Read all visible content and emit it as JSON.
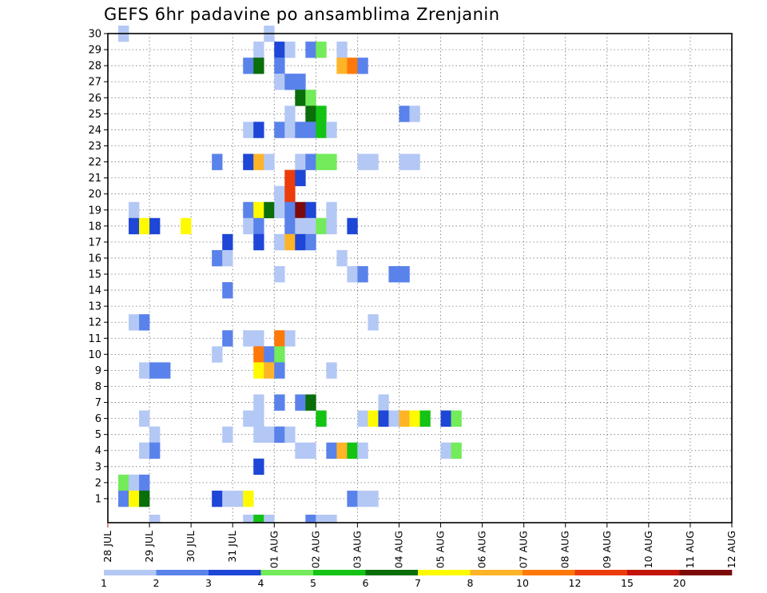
{
  "chart_data": {
    "type": "heatmap",
    "title": "GEFS 6hr padavine po ansamblima Zrenjanin",
    "xlabel": "",
    "ylabel": "",
    "x_tick_labels": [
      "28 JUL",
      "29 JUL",
      "30 JUL",
      "31 JUL",
      "01 AUG",
      "02 AUG",
      "03 AUG",
      "04 AUG",
      "05 AUG",
      "06 AUG",
      "07 AUG",
      "08 AUG",
      "09 AUG",
      "10 AUG",
      "11 AUG",
      "12 AUG"
    ],
    "y_tick_labels": [
      "1",
      "2",
      "3",
      "4",
      "5",
      "6",
      "7",
      "8",
      "9",
      "10",
      "11",
      "12",
      "13",
      "14",
      "15",
      "16",
      "17",
      "18",
      "19",
      "20",
      "21",
      "22",
      "23",
      "24",
      "25",
      "26",
      "27",
      "28",
      "29",
      "30"
    ],
    "x_range_days": [
      0,
      15
    ],
    "y_range": [
      0,
      30
    ],
    "grid": true,
    "legend": {
      "placement": "bottom",
      "labels": [
        "1",
        "2",
        "3",
        "4",
        "5",
        "6",
        "7",
        "8",
        "10",
        "12",
        "15",
        "20"
      ],
      "colors": [
        "#b4c8f5",
        "#5a82eb",
        "#1e46d7",
        "#73eb5a",
        "#14c314",
        "#0a6e0a",
        "#fffa00",
        "#ffb428",
        "#ff780a",
        "#eb3c0a",
        "#c3140a",
        "#7d0a0a"
      ]
    },
    "colors": {
      "lb": "#b4c8f5",
      "mb": "#5a82eb",
      "db": "#1e46d7",
      "lg": "#73eb5a",
      "mg": "#14c314",
      "dg": "#0a6e0a",
      "yw": "#fffa00",
      "lo": "#ffb428",
      "or": "#ff780a",
      "rd": "#eb3c0a",
      "dr": "#c3140a",
      "mr": "#7d0a0a"
    },
    "cells": [
      [
        4,
        0,
        "lb"
      ],
      [
        1,
        30,
        "lb"
      ],
      [
        15,
        30,
        "lb"
      ],
      [
        14,
        29,
        "lb"
      ],
      [
        16,
        29,
        "db"
      ],
      [
        17,
        29,
        "lb"
      ],
      [
        19,
        29,
        "mb"
      ],
      [
        20,
        29,
        "lg"
      ],
      [
        22,
        29,
        "lb"
      ],
      [
        13,
        28,
        "mb"
      ],
      [
        14,
        28,
        "dg"
      ],
      [
        16,
        28,
        "mb"
      ],
      [
        22,
        28,
        "lo"
      ],
      [
        23,
        28,
        "or"
      ],
      [
        24,
        28,
        "mb"
      ],
      [
        16,
        27,
        "lb"
      ],
      [
        17,
        27,
        "mb"
      ],
      [
        18,
        27,
        "mb"
      ],
      [
        18,
        26,
        "dg"
      ],
      [
        19,
        26,
        "lg"
      ],
      [
        17,
        25,
        "lb"
      ],
      [
        19,
        25,
        "dg"
      ],
      [
        20,
        25,
        "mg"
      ],
      [
        28,
        25,
        "mb"
      ],
      [
        29,
        25,
        "lb"
      ],
      [
        13,
        24,
        "lb"
      ],
      [
        14,
        24,
        "db"
      ],
      [
        16,
        24,
        "mb"
      ],
      [
        17,
        24,
        "lb"
      ],
      [
        18,
        24,
        "mb"
      ],
      [
        19,
        24,
        "mb"
      ],
      [
        20,
        24,
        "mg"
      ],
      [
        21,
        24,
        "lb"
      ],
      [
        10,
        22,
        "mb"
      ],
      [
        13,
        22,
        "db"
      ],
      [
        14,
        22,
        "lo"
      ],
      [
        15,
        22,
        "lb"
      ],
      [
        18,
        22,
        "lb"
      ],
      [
        19,
        22,
        "mb"
      ],
      [
        20,
        22,
        "lg"
      ],
      [
        21,
        22,
        "lg"
      ],
      [
        24,
        22,
        "lb"
      ],
      [
        25,
        22,
        "lb"
      ],
      [
        28,
        22,
        "lb"
      ],
      [
        29,
        22,
        "lb"
      ],
      [
        17,
        21,
        "rd"
      ],
      [
        18,
        21,
        "db"
      ],
      [
        16,
        20,
        "lb"
      ],
      [
        17,
        20,
        "rd"
      ],
      [
        2,
        19,
        "lb"
      ],
      [
        13,
        19,
        "mb"
      ],
      [
        14,
        19,
        "yw"
      ],
      [
        15,
        19,
        "dg"
      ],
      [
        16,
        19,
        "lb"
      ],
      [
        17,
        19,
        "mb"
      ],
      [
        18,
        19,
        "mr"
      ],
      [
        19,
        19,
        "db"
      ],
      [
        21,
        19,
        "lb"
      ],
      [
        2,
        18,
        "db"
      ],
      [
        3,
        18,
        "yw"
      ],
      [
        4,
        18,
        "db"
      ],
      [
        7,
        18,
        "yw"
      ],
      [
        13,
        18,
        "lb"
      ],
      [
        14,
        18,
        "mb"
      ],
      [
        17,
        18,
        "mb"
      ],
      [
        18,
        18,
        "lb"
      ],
      [
        19,
        18,
        "lb"
      ],
      [
        20,
        18,
        "lg"
      ],
      [
        21,
        18,
        "lb"
      ],
      [
        23,
        18,
        "db"
      ],
      [
        11,
        17,
        "db"
      ],
      [
        14,
        17,
        "db"
      ],
      [
        16,
        17,
        "lb"
      ],
      [
        17,
        17,
        "lo"
      ],
      [
        18,
        17,
        "db"
      ],
      [
        19,
        17,
        "mb"
      ],
      [
        10,
        16,
        "mb"
      ],
      [
        11,
        16,
        "lb"
      ],
      [
        22,
        16,
        "lb"
      ],
      [
        16,
        15,
        "lb"
      ],
      [
        23,
        15,
        "lb"
      ],
      [
        24,
        15,
        "mb"
      ],
      [
        27,
        15,
        "mb"
      ],
      [
        28,
        15,
        "mb"
      ],
      [
        11,
        14,
        "mb"
      ],
      [
        2,
        12,
        "lb"
      ],
      [
        3,
        12,
        "mb"
      ],
      [
        25,
        12,
        "lb"
      ],
      [
        11,
        11,
        "mb"
      ],
      [
        13,
        11,
        "lb"
      ],
      [
        14,
        11,
        "lb"
      ],
      [
        16,
        11,
        "or"
      ],
      [
        17,
        11,
        "lb"
      ],
      [
        10,
        10,
        "lb"
      ],
      [
        14,
        10,
        "or"
      ],
      [
        15,
        10,
        "mb"
      ],
      [
        16,
        10,
        "lg"
      ],
      [
        3,
        9,
        "lb"
      ],
      [
        4,
        9,
        "mb"
      ],
      [
        5,
        9,
        "mb"
      ],
      [
        14,
        9,
        "yw"
      ],
      [
        15,
        9,
        "lo"
      ],
      [
        16,
        9,
        "mb"
      ],
      [
        21,
        9,
        "lb"
      ],
      [
        14,
        7,
        "lb"
      ],
      [
        16,
        7,
        "mb"
      ],
      [
        18,
        7,
        "mb"
      ],
      [
        19,
        7,
        "dg"
      ],
      [
        26,
        7,
        "lb"
      ],
      [
        3,
        6,
        "lb"
      ],
      [
        13,
        6,
        "lb"
      ],
      [
        14,
        6,
        "lb"
      ],
      [
        20,
        6,
        "mg"
      ],
      [
        24,
        6,
        "lb"
      ],
      [
        25,
        6,
        "yw"
      ],
      [
        26,
        6,
        "db"
      ],
      [
        27,
        6,
        "lb"
      ],
      [
        28,
        6,
        "lo"
      ],
      [
        29,
        6,
        "yw"
      ],
      [
        30,
        6,
        "mg"
      ],
      [
        32,
        6,
        "db"
      ],
      [
        33,
        6,
        "lg"
      ],
      [
        4,
        5,
        "lb"
      ],
      [
        11,
        5,
        "lb"
      ],
      [
        14,
        5,
        "lb"
      ],
      [
        15,
        5,
        "lb"
      ],
      [
        16,
        5,
        "mb"
      ],
      [
        17,
        5,
        "lb"
      ],
      [
        3,
        4,
        "lb"
      ],
      [
        4,
        4,
        "mb"
      ],
      [
        18,
        4,
        "lb"
      ],
      [
        19,
        4,
        "lb"
      ],
      [
        21,
        4,
        "mb"
      ],
      [
        22,
        4,
        "lo"
      ],
      [
        23,
        4,
        "mg"
      ],
      [
        24,
        4,
        "lb"
      ],
      [
        32,
        4,
        "lb"
      ],
      [
        33,
        4,
        "lg"
      ],
      [
        14,
        3,
        "db"
      ],
      [
        1,
        2,
        "lg"
      ],
      [
        2,
        2,
        "lb"
      ],
      [
        3,
        2,
        "mb"
      ],
      [
        1,
        1,
        "mb"
      ],
      [
        2,
        1,
        "yw"
      ],
      [
        3,
        1,
        "dg"
      ],
      [
        10,
        1,
        "db"
      ],
      [
        11,
        1,
        "lb"
      ],
      [
        12,
        1,
        "lb"
      ],
      [
        13,
        1,
        "yw"
      ],
      [
        23,
        1,
        "mb"
      ],
      [
        24,
        1,
        "lb"
      ],
      [
        25,
        1,
        "lb"
      ],
      [
        13,
        0,
        "lb"
      ],
      [
        14,
        0,
        "mg"
      ],
      [
        15,
        0,
        "lb"
      ],
      [
        19,
        0,
        "mb"
      ],
      [
        20,
        0,
        "lb"
      ],
      [
        21,
        0,
        "lb"
      ]
    ]
  }
}
